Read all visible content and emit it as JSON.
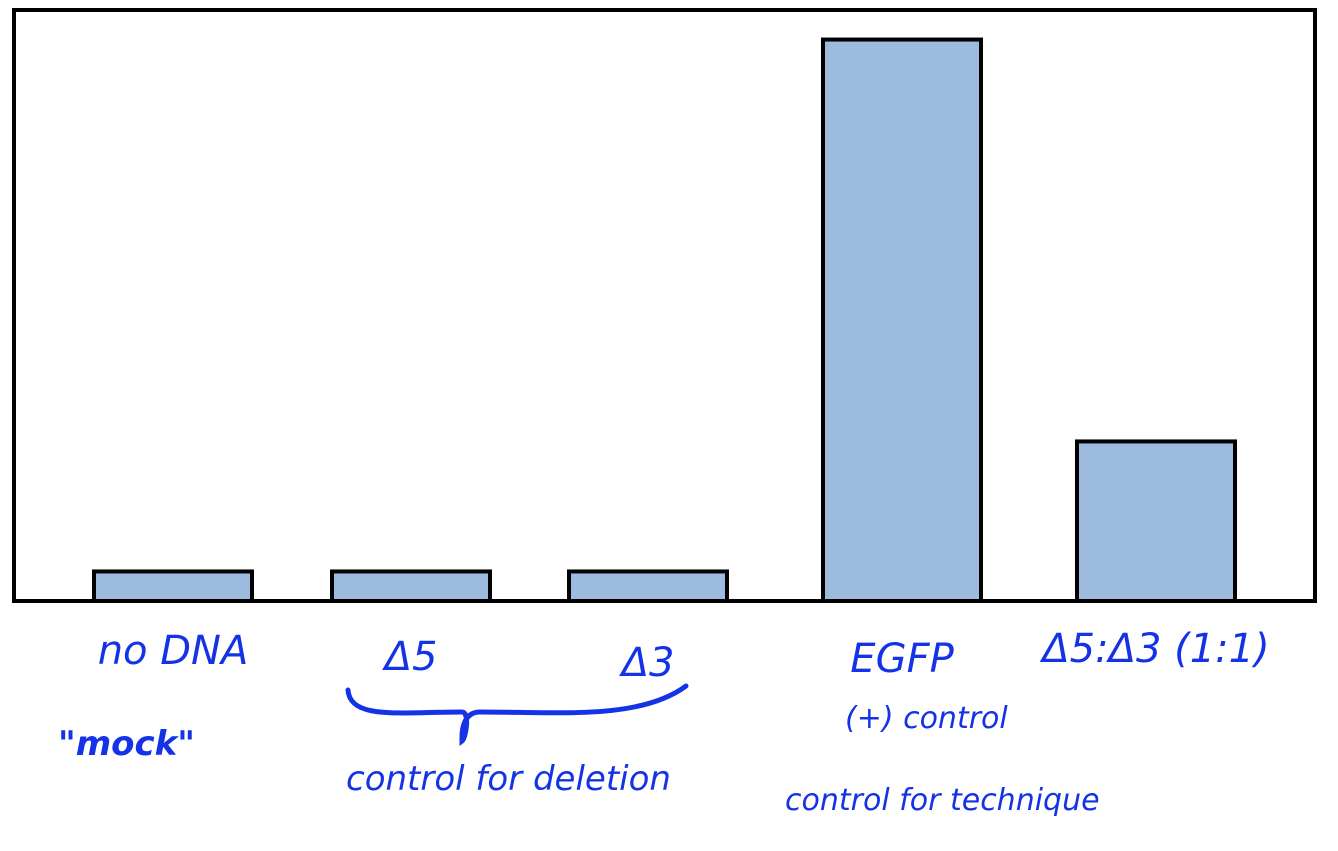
{
  "colors": {
    "bar_fill": "#9dbbdf",
    "bar_stroke": "#000000",
    "ink": "#1432e6",
    "frame": "#000000"
  },
  "chart_data": {
    "type": "bar",
    "categories": [
      "no DNA",
      "Δ5",
      "Δ3",
      "EGFP",
      "Δ5:Δ3 (1:1)"
    ],
    "values": [
      5,
      5,
      5,
      95,
      27
    ],
    "ylim": [
      0,
      100
    ],
    "grid": false,
    "title": "",
    "xlabel": "",
    "ylabel": ""
  },
  "annotations": {
    "mock": "\"mock\"",
    "deletion_control": "control for deletion",
    "egfp_control": "(+) control",
    "technique_control": "control for technique"
  }
}
